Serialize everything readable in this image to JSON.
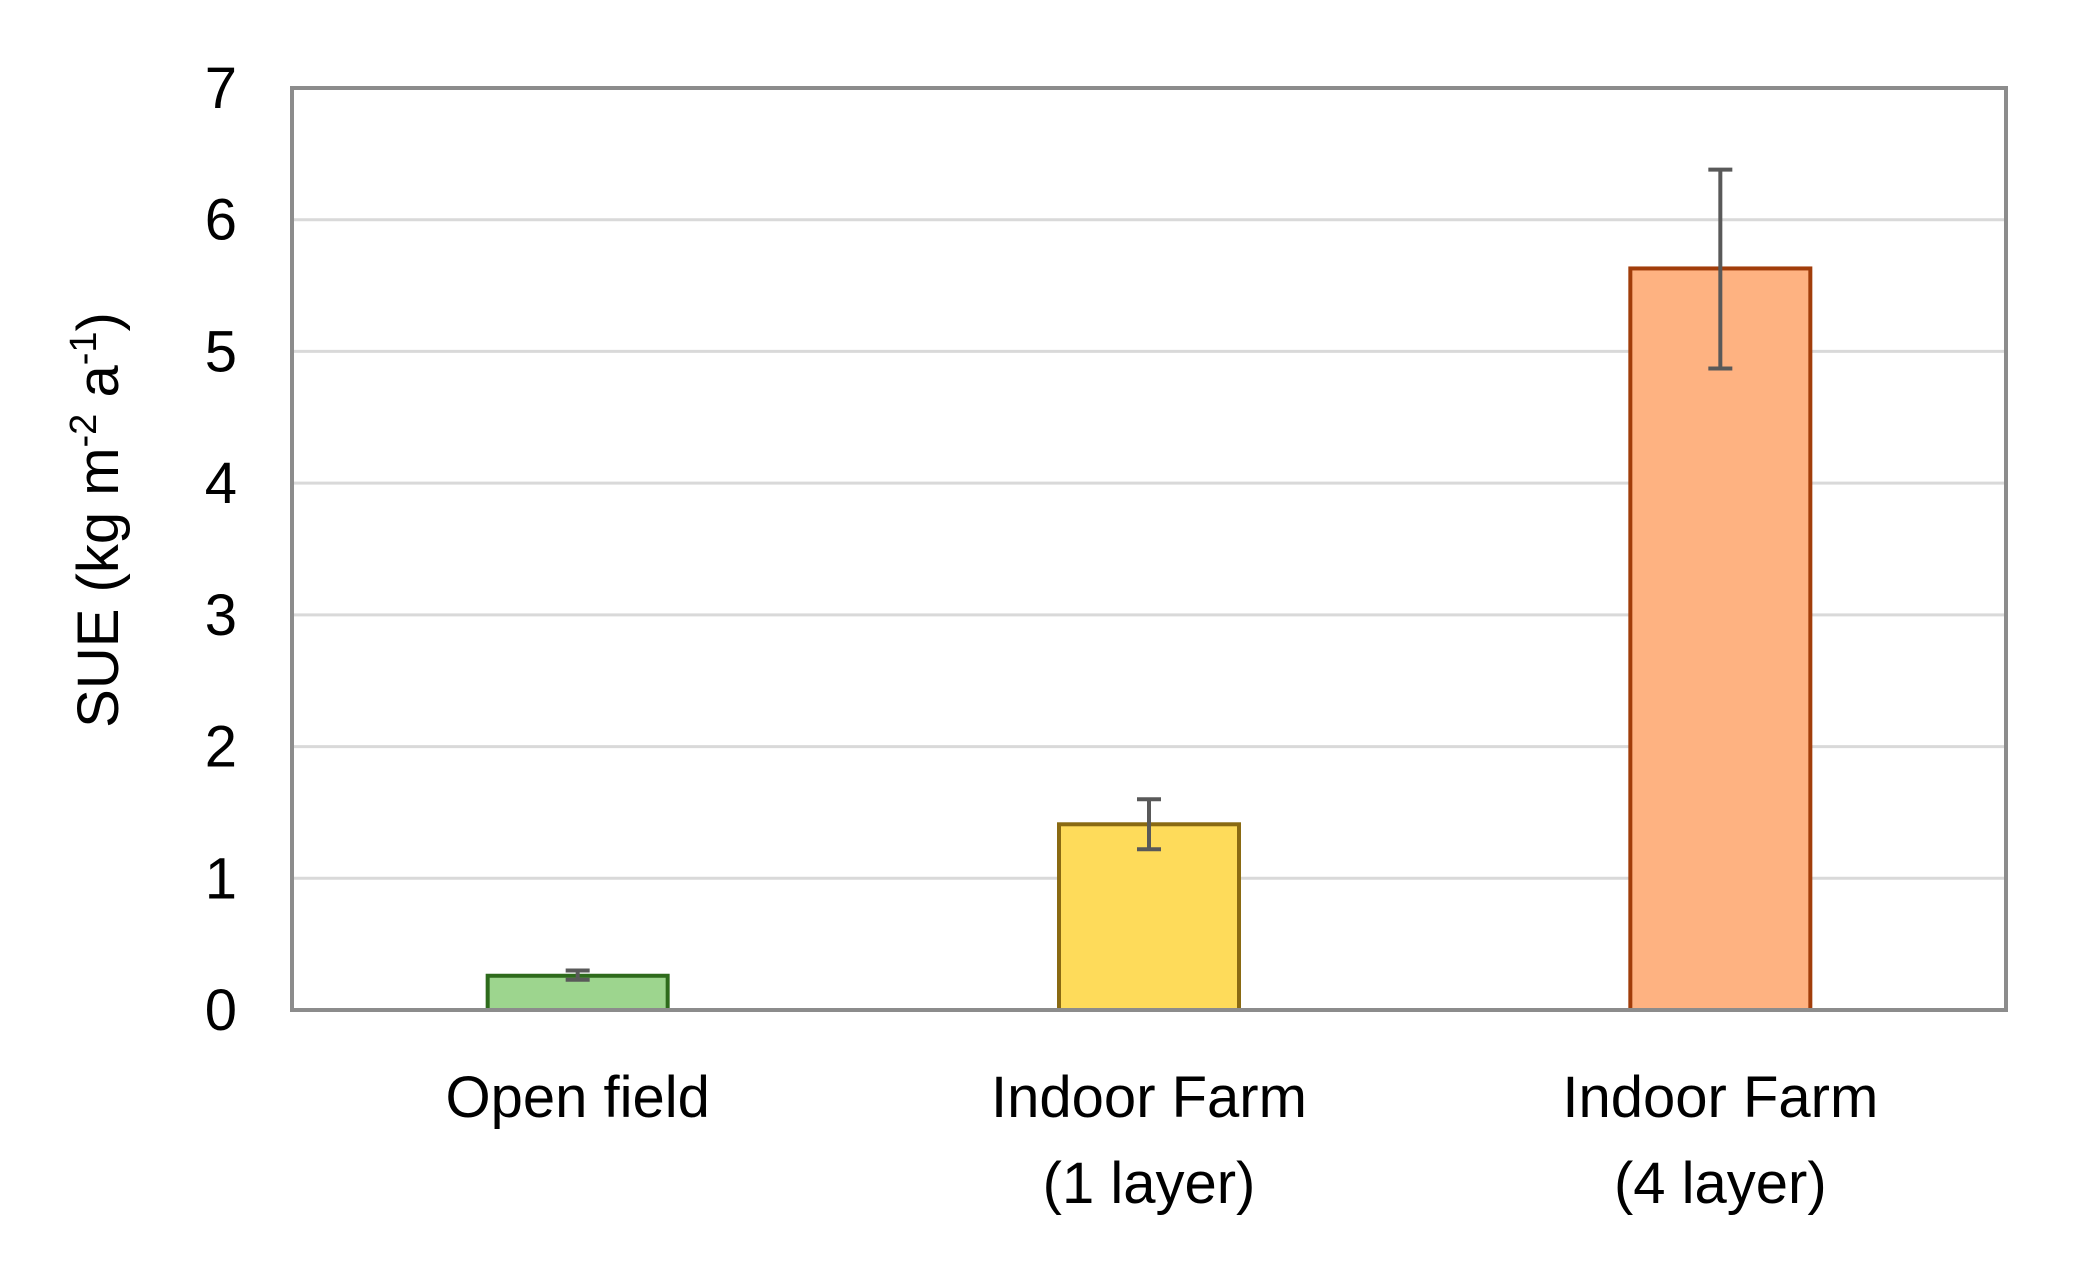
{
  "chart_data": {
    "type": "bar",
    "title": "",
    "xlabel": "",
    "ylabel": {
      "main": "SUE (kg m",
      "sup1": "-2",
      "mid": " a",
      "sup2": "-1",
      "end": ")"
    },
    "ylim": [
      0,
      7
    ],
    "yticks": [
      "0",
      "1",
      "2",
      "3",
      "4",
      "5",
      "6",
      "7"
    ],
    "grid": true,
    "legend": "none",
    "categories": [
      [
        "Open field"
      ],
      [
        "Indoor Farm",
        "(1 layer)"
      ],
      [
        "Indoor Farm",
        "(4 layer)"
      ]
    ],
    "values": [
      0.26,
      1.41,
      5.63
    ],
    "error_low": [
      0.23,
      1.22,
      4.87
    ],
    "error_high": [
      0.3,
      1.6,
      6.38
    ],
    "colors": {
      "fills": [
        "#9dd58e",
        "#fedb5a",
        "#feb281"
      ],
      "strokes": [
        "#2e6b1c",
        "#8a6a12",
        "#a13d0a"
      ],
      "error_bar": "#595959",
      "grid": "#d9d9d9",
      "frame": "#8c8c8c"
    }
  }
}
